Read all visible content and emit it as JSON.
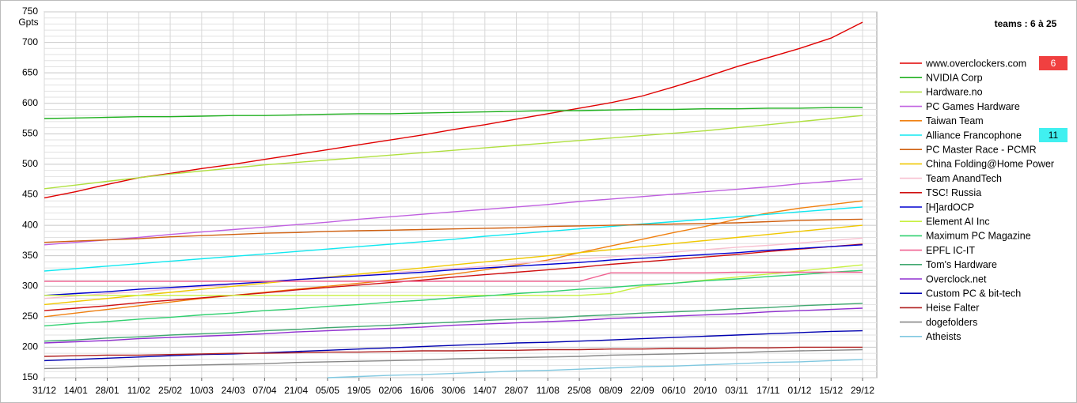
{
  "chart_data": {
    "type": "line",
    "title": "teams : 6 à 25",
    "y_unit": "Gpts",
    "categories": [
      "31/12",
      "14/01",
      "28/01",
      "11/02",
      "25/02",
      "10/03",
      "24/03",
      "07/04",
      "21/04",
      "05/05",
      "19/05",
      "02/06",
      "16/06",
      "30/06",
      "14/07",
      "28/07",
      "11/08",
      "25/08",
      "08/09",
      "22/09",
      "06/10",
      "20/10",
      "03/11",
      "17/11",
      "01/12",
      "15/12",
      "29/12"
    ],
    "ylim": [
      150,
      750
    ],
    "yticks": [
      150,
      200,
      250,
      300,
      350,
      400,
      450,
      500,
      550,
      600,
      650,
      700,
      750
    ],
    "grid": true,
    "legend": "right",
    "series": [
      {
        "name": "www.overclockers.com",
        "color": "#e00000",
        "badge": 6,
        "badge_color": "#f04040",
        "values": [
          445,
          455,
          467,
          478,
          485,
          493,
          500,
          508,
          516,
          524,
          532,
          540,
          548,
          557,
          565,
          574,
          583,
          592,
          601,
          612,
          627,
          643,
          660,
          675,
          690,
          707,
          733
        ]
      },
      {
        "name": "NVIDIA Corp",
        "color": "#20b020",
        "values": [
          575,
          576,
          577,
          578,
          578,
          579,
          580,
          580,
          581,
          582,
          583,
          583,
          584,
          585,
          586,
          587,
          588,
          588,
          589,
          590,
          590,
          591,
          591,
          592,
          592,
          593,
          593
        ]
      },
      {
        "name": "Hardware.no",
        "color": "#b0e040",
        "values": [
          460,
          466,
          472,
          478,
          484,
          489,
          494,
          499,
          503,
          507,
          511,
          515,
          519,
          523,
          527,
          531,
          535,
          539,
          543,
          547,
          551,
          555,
          560,
          565,
          570,
          575,
          580
        ]
      },
      {
        "name": "PC Games Hardware",
        "color": "#c060e0",
        "values": [
          368,
          372,
          376,
          380,
          385,
          389,
          393,
          397,
          401,
          405,
          410,
          414,
          418,
          422,
          426,
          430,
          434,
          439,
          443,
          447,
          451,
          455,
          459,
          463,
          468,
          472,
          476
        ]
      },
      {
        "name": "Taiwan Team",
        "color": "#f08010",
        "values": [
          250,
          256,
          262,
          268,
          274,
          280,
          285,
          290,
          295,
          300,
          305,
          310,
          315,
          320,
          327,
          335,
          343,
          355,
          366,
          377,
          388,
          398,
          410,
          420,
          428,
          434,
          440
        ]
      },
      {
        "name": "Alliance Francophone",
        "color": "#10e8f0",
        "badge": 11,
        "badge_color": "#40f0f0",
        "values": [
          325,
          329,
          333,
          337,
          341,
          345,
          349,
          353,
          357,
          361,
          365,
          369,
          373,
          377,
          382,
          386,
          390,
          394,
          398,
          402,
          406,
          410,
          414,
          418,
          422,
          426,
          430
        ]
      },
      {
        "name": "PC Master Race - PCMR",
        "color": "#d06010",
        "values": [
          372,
          374,
          376,
          378,
          381,
          383,
          385,
          387,
          388,
          390,
          391,
          392,
          393,
          394,
          395,
          396,
          398,
          399,
          400,
          401,
          402,
          403,
          404,
          406,
          408,
          409,
          410
        ]
      },
      {
        "name": "China Folding@Home Power",
        "color": "#f0c800",
        "values": [
          270,
          275,
          280,
          285,
          290,
          295,
          300,
          305,
          310,
          315,
          320,
          325,
          330,
          335,
          340,
          345,
          350,
          355,
          360,
          365,
          370,
          375,
          380,
          385,
          390,
          395,
          400
        ]
      },
      {
        "name": "Team AnandTech",
        "color": "#f8c0d0",
        "values": [
          280,
          284,
          288,
          291,
          295,
          299,
          303,
          307,
          310,
          314,
          318,
          322,
          326,
          329,
          333,
          337,
          341,
          345,
          348,
          352,
          356,
          360,
          364,
          367,
          371,
          375,
          379
        ]
      },
      {
        "name": "TSC! Russia",
        "color": "#d01010",
        "values": [
          260,
          264,
          268,
          273,
          277,
          281,
          285,
          289,
          294,
          298,
          302,
          306,
          310,
          315,
          319,
          323,
          327,
          331,
          336,
          340,
          344,
          348,
          352,
          357,
          361,
          365,
          369
        ]
      },
      {
        "name": "[H]ardOCP",
        "color": "#0000d0",
        "values": [
          285,
          288,
          291,
          295,
          298,
          301,
          304,
          307,
          311,
          314,
          317,
          320,
          323,
          327,
          330,
          333,
          336,
          339,
          343,
          346,
          349,
          352,
          355,
          359,
          362,
          365,
          368
        ]
      },
      {
        "name": "Element AI Inc",
        "color": "#c8f040",
        "values": [
          285,
          285,
          285,
          285,
          285,
          285,
          285,
          285,
          285,
          285,
          285,
          285,
          285,
          285,
          285,
          285,
          285,
          285,
          288,
          300,
          305,
          310,
          315,
          320,
          325,
          330,
          335
        ]
      },
      {
        "name": "Maximum PC Magazine",
        "color": "#30d070",
        "values": [
          235,
          239,
          242,
          246,
          249,
          253,
          256,
          260,
          263,
          267,
          270,
          274,
          277,
          281,
          284,
          288,
          291,
          295,
          298,
          302,
          305,
          309,
          312,
          316,
          319,
          323,
          326
        ]
      },
      {
        "name": "EPFL IC-IT",
        "color": "#f06090",
        "values": [
          308,
          308,
          308,
          308,
          308,
          308,
          308,
          308,
          308,
          308,
          308,
          308,
          308,
          308,
          308,
          308,
          308,
          308,
          322,
          322,
          322,
          322,
          323,
          323,
          323,
          323,
          323
        ]
      },
      {
        "name": "Tom's Hardware",
        "color": "#40a870",
        "values": [
          210,
          212,
          215,
          217,
          220,
          222,
          224,
          227,
          229,
          232,
          234,
          236,
          239,
          241,
          244,
          246,
          248,
          251,
          253,
          256,
          258,
          260,
          263,
          265,
          268,
          270,
          272
        ]
      },
      {
        "name": "Overclock.net",
        "color": "#9030d0",
        "values": [
          207,
          209,
          211,
          214,
          216,
          218,
          220,
          222,
          225,
          227,
          229,
          231,
          233,
          236,
          238,
          240,
          242,
          244,
          247,
          249,
          251,
          253,
          255,
          258,
          260,
          262,
          264
        ]
      },
      {
        "name": "Custom PC & bit-tech",
        "color": "#0000b0",
        "values": [
          178,
          180,
          182,
          184,
          186,
          188,
          189,
          191,
          193,
          195,
          197,
          199,
          201,
          203,
          205,
          207,
          208,
          210,
          212,
          214,
          216,
          218,
          220,
          222,
          224,
          226,
          227
        ]
      },
      {
        "name": "Heise Falter",
        "color": "#b02020",
        "values": [
          185,
          186,
          187,
          187,
          188,
          189,
          190,
          190,
          191,
          192,
          192,
          193,
          194,
          194,
          195,
          195,
          196,
          196,
          197,
          197,
          198,
          198,
          199,
          199,
          200,
          200,
          200
        ]
      },
      {
        "name": "dogefolders",
        "color": "#888888",
        "values": [
          165,
          166,
          167,
          169,
          170,
          171,
          172,
          173,
          175,
          176,
          177,
          178,
          179,
          181,
          182,
          183,
          184,
          185,
          187,
          188,
          189,
          190,
          191,
          193,
          194,
          195,
          196
        ]
      },
      {
        "name": "Atheists",
        "color": "#80c8e0",
        "values": [
          null,
          null,
          null,
          null,
          null,
          null,
          null,
          null,
          null,
          150,
          152,
          154,
          155,
          157,
          159,
          161,
          162,
          164,
          166,
          168,
          169,
          171,
          173,
          175,
          176,
          178,
          180
        ]
      }
    ]
  }
}
